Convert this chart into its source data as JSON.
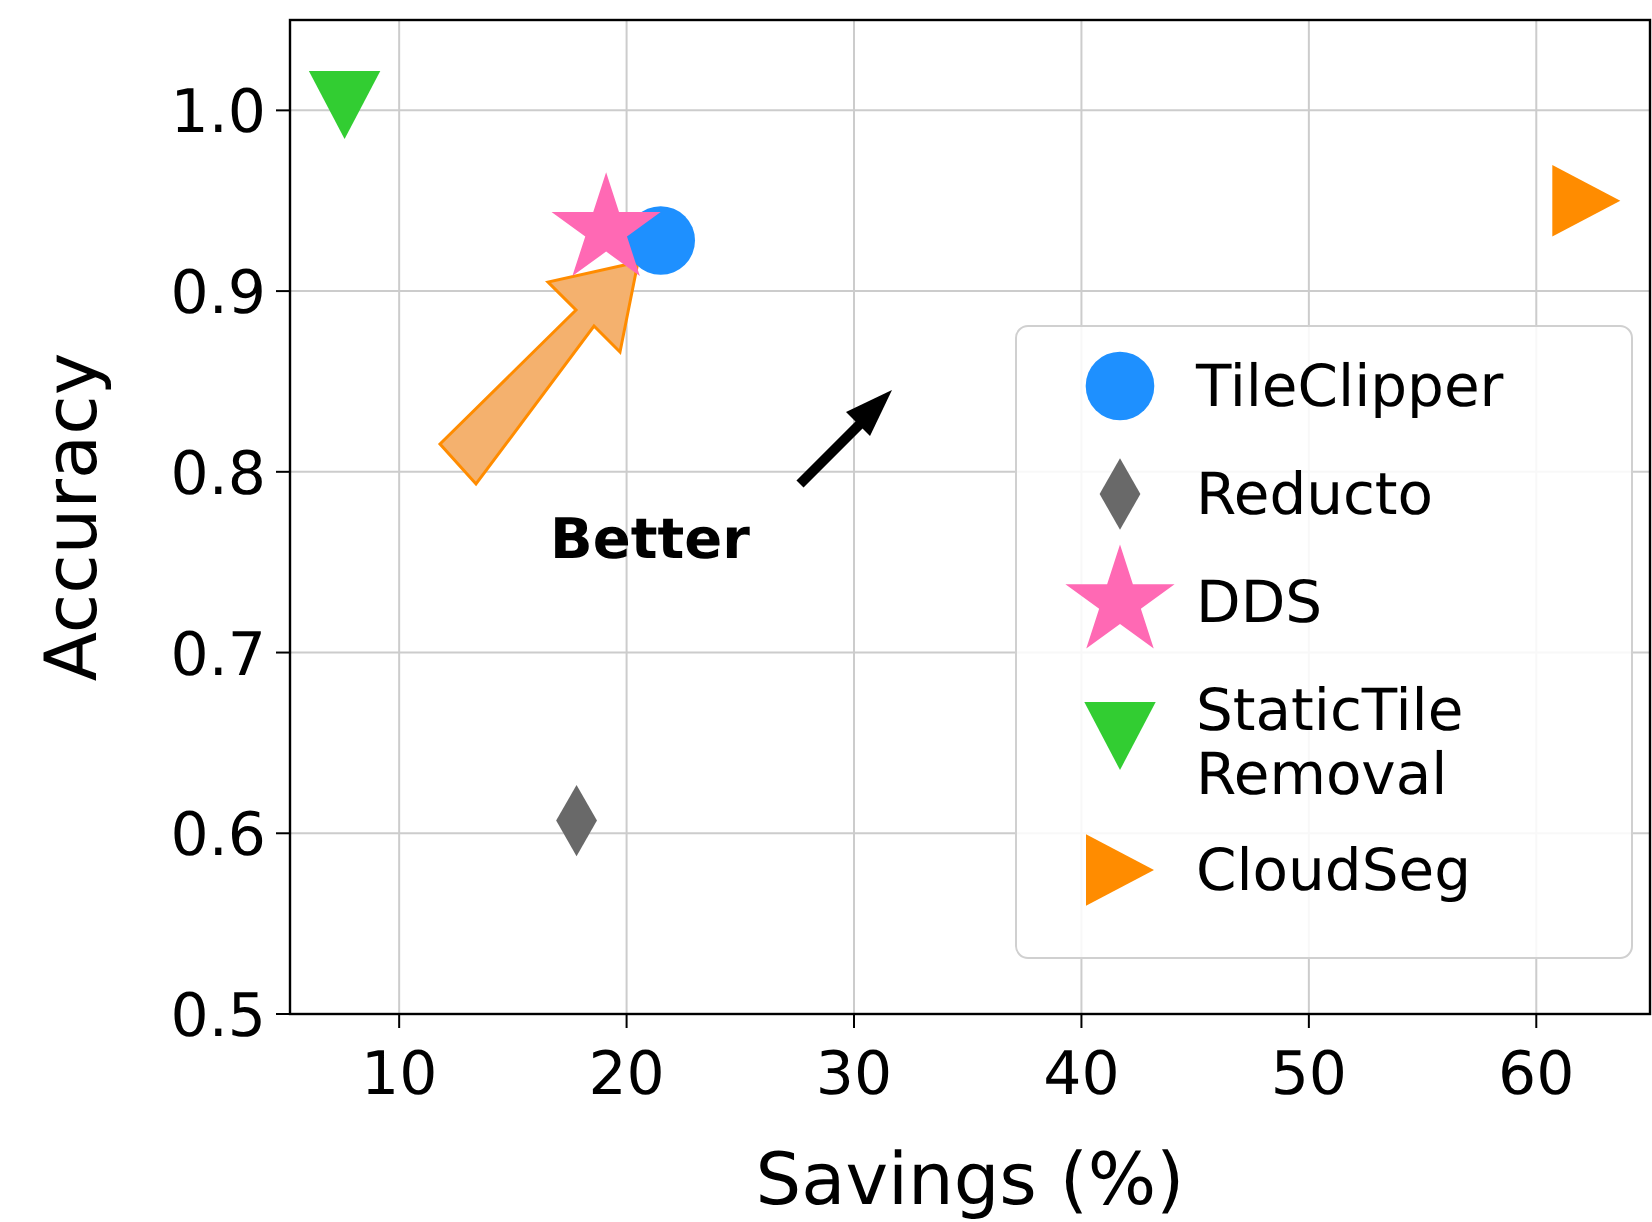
{
  "chart_data": {
    "type": "scatter",
    "xlabel": "Savings (%)",
    "ylabel": "Accuracy",
    "xlim": [
      5.2,
      65
    ],
    "xticks": [
      10,
      20,
      30,
      40,
      50,
      60
    ],
    "ylim": [
      0.5,
      1.05
    ],
    "yticks": [
      {
        "value": 0.5,
        "label": "0.5"
      },
      {
        "value": 0.6,
        "label": "0.6"
      },
      {
        "value": 0.7,
        "label": "0.7"
      },
      {
        "value": 0.8,
        "label": "0.8"
      },
      {
        "value": 0.9,
        "label": "0.9"
      },
      {
        "value": 1.0,
        "label": "1.0"
      }
    ],
    "grid": true,
    "legend": "right",
    "annotations": [
      "Better"
    ],
    "series": [
      {
        "name": "TileClipper",
        "color": "#1e90ff",
        "marker": "circle",
        "x": [
          21.5
        ],
        "values": [
          0.928
        ]
      },
      {
        "name": "Reducto",
        "color": "#696969",
        "marker": "diamond",
        "x": [
          17.8
        ],
        "values": [
          0.607
        ]
      },
      {
        "name": "DDS",
        "color": "#ff69b4",
        "marker": "star",
        "x": [
          19.1
        ],
        "values": [
          0.934
        ]
      },
      {
        "name": "StaticTile Removal",
        "color": "#32cd32",
        "marker": "triangle",
        "x": [
          7.6
        ],
        "values": [
          1.003
        ]
      },
      {
        "name": "CloudSeg",
        "color": "#ff8c00",
        "marker": "triangle",
        "x": [
          62.2
        ],
        "values": [
          0.95
        ]
      }
    ]
  }
}
